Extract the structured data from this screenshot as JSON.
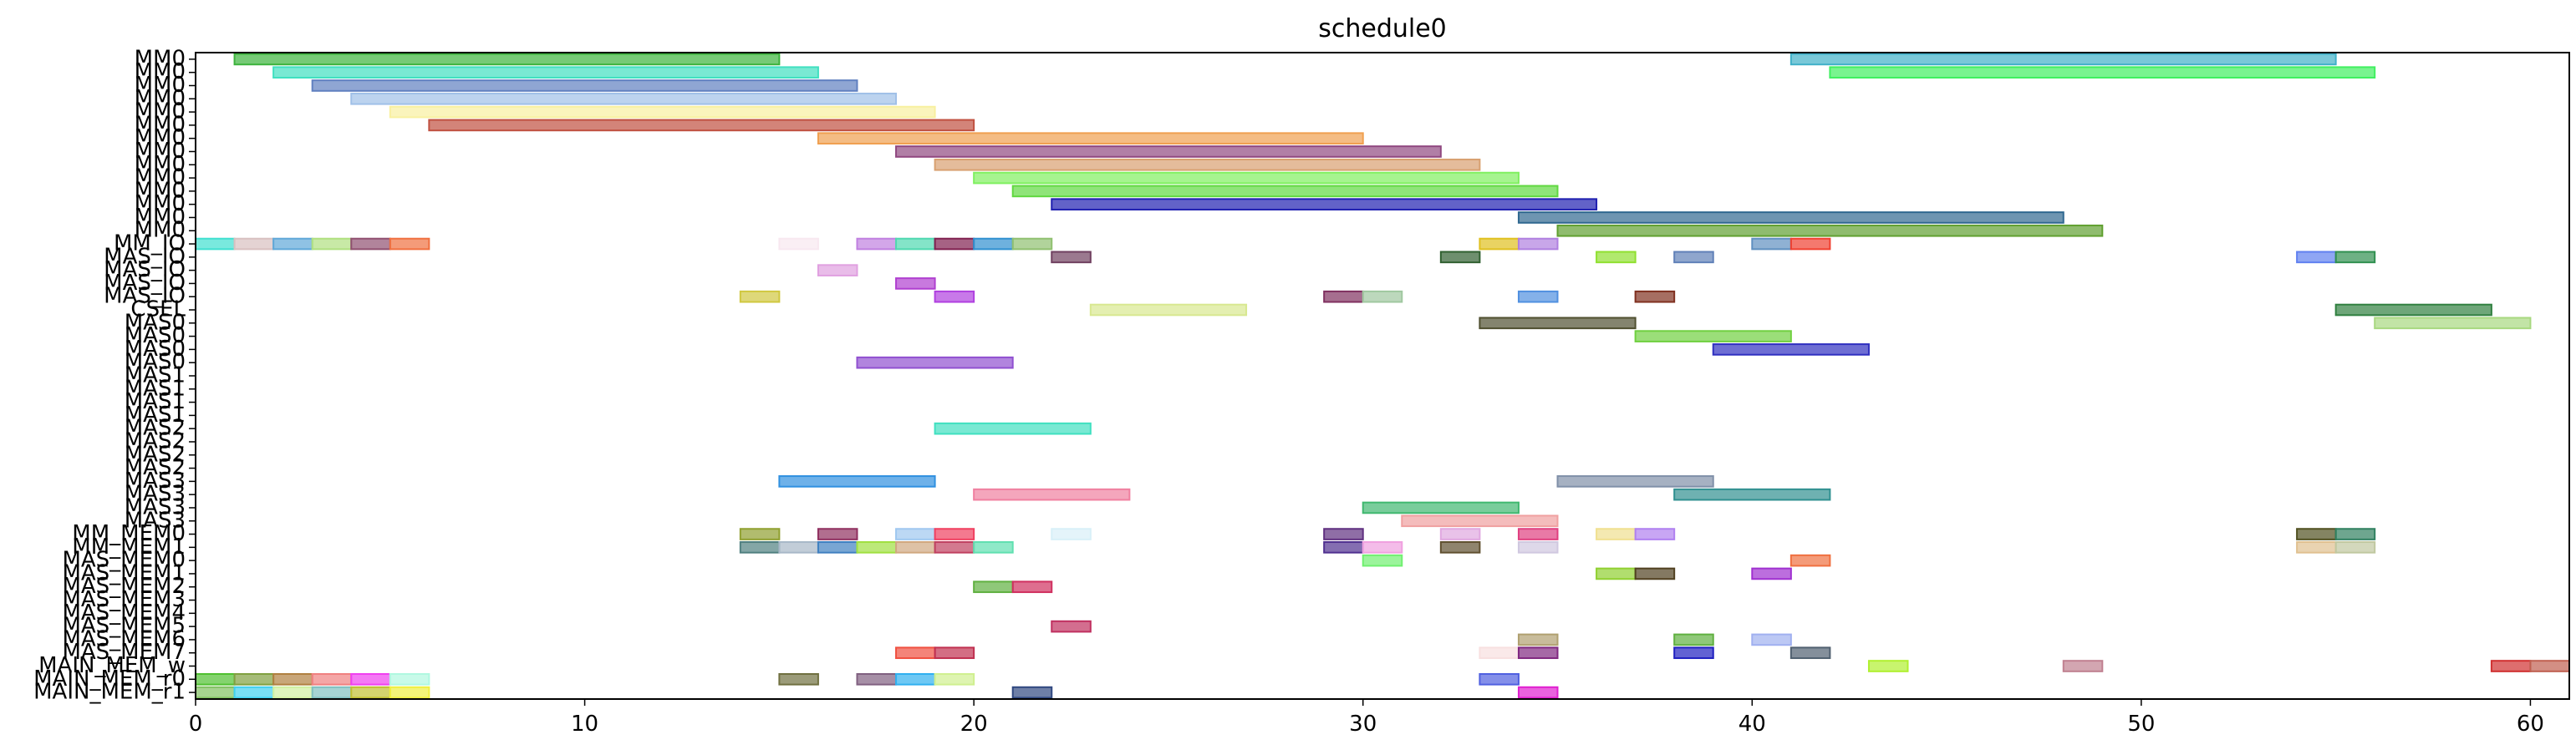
{
  "chart_data": {
    "type": "gantt",
    "title": "schedule0",
    "xlim": [
      0,
      61
    ],
    "x_ticks": [
      0,
      10,
      20,
      30,
      40,
      50,
      60
    ],
    "grid": false,
    "rows": [
      "MM0",
      "MM0",
      "MM0",
      "MM0",
      "MM0",
      "MM0",
      "MM0",
      "MM0",
      "MM0",
      "MM0",
      "MM0",
      "MM0",
      "MM0",
      "MM0",
      "MM_IO",
      "MAS_IO",
      "MAS_IO",
      "MAS_IO",
      "MAS_IO",
      "CSEL",
      "MAS0",
      "MAS0",
      "MAS0",
      "MAS0",
      "MAS1",
      "MAS1",
      "MAS1",
      "MAS1",
      "MAS2",
      "MAS2",
      "MAS2",
      "MAS2",
      "MAS3",
      "MAS3",
      "MAS3",
      "MAS3",
      "MM_MEM0",
      "MM_MEM1",
      "MAS_MEM0",
      "MAS_MEM1",
      "MAS_MEM2",
      "MAS_MEM3",
      "MAS_MEM4",
      "MAS_MEM5",
      "MAS_MEM6",
      "MAS_MEM7",
      "MAIN_MEM_w",
      "MAIN_MEM_r0",
      "MAIN_MEM_r1"
    ],
    "tasks": [
      {
        "row": 0,
        "start": 1,
        "end": 15,
        "color": "#3cb33c"
      },
      {
        "row": 0,
        "start": 41,
        "end": 55,
        "color": "#40b0c8"
      },
      {
        "row": 1,
        "start": 2,
        "end": 16,
        "color": "#40e0c0"
      },
      {
        "row": 1,
        "start": 42,
        "end": 56,
        "color": "#40f060"
      },
      {
        "row": 2,
        "start": 3,
        "end": 17,
        "color": "#6080c0"
      },
      {
        "row": 3,
        "start": 4,
        "end": 18,
        "color": "#a0c0e8"
      },
      {
        "row": 4,
        "start": 5,
        "end": 19,
        "color": "#f8f0a0"
      },
      {
        "row": 5,
        "start": 6,
        "end": 20,
        "color": "#c05040"
      },
      {
        "row": 6,
        "start": 16,
        "end": 30,
        "color": "#f0a050"
      },
      {
        "row": 7,
        "start": 18,
        "end": 32,
        "color": "#904880"
      },
      {
        "row": 8,
        "start": 19,
        "end": 33,
        "color": "#d8a070"
      },
      {
        "row": 9,
        "start": 20,
        "end": 34,
        "color": "#80f060"
      },
      {
        "row": 10,
        "start": 21,
        "end": 35,
        "color": "#60d840"
      },
      {
        "row": 11,
        "start": 22,
        "end": 36,
        "color": "#2020b0"
      },
      {
        "row": 12,
        "start": 34,
        "end": 48,
        "color": "#306890"
      },
      {
        "row": 13,
        "start": 35,
        "end": 49,
        "color": "#60a030"
      },
      {
        "row": 14,
        "start": 0,
        "end": 1,
        "color": "#40e0d0"
      },
      {
        "row": 14,
        "start": 1,
        "end": 2,
        "color": "#d8c0c0"
      },
      {
        "row": 14,
        "start": 2,
        "end": 3,
        "color": "#60a8d8"
      },
      {
        "row": 14,
        "start": 3,
        "end": 4,
        "color": "#b0e080"
      },
      {
        "row": 14,
        "start": 4,
        "end": 5,
        "color": "#905070"
      },
      {
        "row": 14,
        "start": 5,
        "end": 6,
        "color": "#f07040"
      },
      {
        "row": 14,
        "start": 15,
        "end": 16,
        "color": "#f8e8f0"
      },
      {
        "row": 14,
        "start": 17,
        "end": 18,
        "color": "#c080e0"
      },
      {
        "row": 14,
        "start": 18,
        "end": 19,
        "color": "#50d8b0"
      },
      {
        "row": 14,
        "start": 19,
        "end": 20,
        "color": "#802050"
      },
      {
        "row": 14,
        "start": 20,
        "end": 21,
        "color": "#3090d0"
      },
      {
        "row": 14,
        "start": 21,
        "end": 22,
        "color": "#90c070"
      },
      {
        "row": 14,
        "start": 33,
        "end": 34,
        "color": "#e0c020"
      },
      {
        "row": 14,
        "start": 34,
        "end": 35,
        "color": "#b080e0"
      },
      {
        "row": 14,
        "start": 40,
        "end": 41,
        "color": "#6090c0"
      },
      {
        "row": 14,
        "start": 41,
        "end": 42,
        "color": "#f04030"
      },
      {
        "row": 15,
        "start": 22,
        "end": 23,
        "color": "#704060"
      },
      {
        "row": 15,
        "start": 32,
        "end": 33,
        "color": "#306030"
      },
      {
        "row": 15,
        "start": 36,
        "end": 37,
        "color": "#90e030"
      },
      {
        "row": 15,
        "start": 38,
        "end": 39,
        "color": "#6080b8"
      },
      {
        "row": 15,
        "start": 54,
        "end": 55,
        "color": "#6080f0"
      },
      {
        "row": 15,
        "start": 55,
        "end": 56,
        "color": "#309050"
      },
      {
        "row": 16,
        "start": 16,
        "end": 17,
        "color": "#e0a0e0"
      },
      {
        "row": 17,
        "start": 18,
        "end": 19,
        "color": "#b040d0"
      },
      {
        "row": 18,
        "start": 14,
        "end": 15,
        "color": "#d0c840"
      },
      {
        "row": 18,
        "start": 19,
        "end": 20,
        "color": "#b040e0"
      },
      {
        "row": 18,
        "start": 29,
        "end": 30,
        "color": "#803060"
      },
      {
        "row": 18,
        "start": 30,
        "end": 31,
        "color": "#a0c8a0"
      },
      {
        "row": 18,
        "start": 34,
        "end": 35,
        "color": "#5090e0"
      },
      {
        "row": 18,
        "start": 37,
        "end": 38,
        "color": "#803020"
      },
      {
        "row": 19,
        "start": 23,
        "end": 27,
        "color": "#d8e890"
      },
      {
        "row": 19,
        "start": 55,
        "end": 59,
        "color": "#308040"
      },
      {
        "row": 20,
        "start": 56,
        "end": 60,
        "color": "#a8d880"
      },
      {
        "row": 20,
        "start": 33,
        "end": 37,
        "color": "#505030"
      },
      {
        "row": 21,
        "start": 37,
        "end": 41,
        "color": "#70d040"
      },
      {
        "row": 22,
        "start": 39,
        "end": 43,
        "color": "#3030c0"
      },
      {
        "row": 23,
        "start": 17,
        "end": 21,
        "color": "#9050d0"
      },
      {
        "row": 28,
        "start": 19,
        "end": 23,
        "color": "#40e0c0"
      },
      {
        "row": 32,
        "start": 15,
        "end": 19,
        "color": "#3090e0"
      },
      {
        "row": 32,
        "start": 35,
        "end": 39,
        "color": "#8090a8"
      },
      {
        "row": 33,
        "start": 20,
        "end": 24,
        "color": "#f080a0"
      },
      {
        "row": 33,
        "start": 38,
        "end": 42,
        "color": "#309090"
      },
      {
        "row": 34,
        "start": 30,
        "end": 34,
        "color": "#40b870"
      },
      {
        "row": 35,
        "start": 31,
        "end": 35,
        "color": "#f0a0a0"
      },
      {
        "row": 36,
        "start": 14,
        "end": 15,
        "color": "#90a030"
      },
      {
        "row": 36,
        "start": 16,
        "end": 17,
        "color": "#903060"
      },
      {
        "row": 36,
        "start": 18,
        "end": 19,
        "color": "#a0c8f0"
      },
      {
        "row": 36,
        "start": 19,
        "end": 20,
        "color": "#f04060"
      },
      {
        "row": 36,
        "start": 22,
        "end": 23,
        "color": "#d8f0f8"
      },
      {
        "row": 36,
        "start": 29,
        "end": 30,
        "color": "#603080"
      },
      {
        "row": 36,
        "start": 32,
        "end": 33,
        "color": "#e0a8e0"
      },
      {
        "row": 36,
        "start": 34,
        "end": 35,
        "color": "#e04080"
      },
      {
        "row": 36,
        "start": 36,
        "end": 37,
        "color": "#f0e090"
      },
      {
        "row": 36,
        "start": 37,
        "end": 38,
        "color": "#b080f0"
      },
      {
        "row": 36,
        "start": 54,
        "end": 55,
        "color": "#505020"
      },
      {
        "row": 36,
        "start": 55,
        "end": 56,
        "color": "#308060"
      },
      {
        "row": 37,
        "start": 14,
        "end": 15,
        "color": "#508080"
      },
      {
        "row": 37,
        "start": 15,
        "end": 16,
        "color": "#a8b8c8"
      },
      {
        "row": 37,
        "start": 16,
        "end": 17,
        "color": "#4080c0"
      },
      {
        "row": 37,
        "start": 17,
        "end": 18,
        "color": "#a0e040"
      },
      {
        "row": 37,
        "start": 18,
        "end": 19,
        "color": "#d0a880"
      },
      {
        "row": 37,
        "start": 19,
        "end": 20,
        "color": "#c04060"
      },
      {
        "row": 37,
        "start": 20,
        "end": 21,
        "color": "#60e0b0"
      },
      {
        "row": 37,
        "start": 29,
        "end": 30,
        "color": "#503090"
      },
      {
        "row": 37,
        "start": 30,
        "end": 31,
        "color": "#f0a0e0"
      },
      {
        "row": 37,
        "start": 32,
        "end": 33,
        "color": "#605030"
      },
      {
        "row": 37,
        "start": 34,
        "end": 35,
        "color": "#d0c8e0"
      },
      {
        "row": 37,
        "start": 54,
        "end": 55,
        "color": "#e0c090"
      },
      {
        "row": 37,
        "start": 55,
        "end": 56,
        "color": "#c0c8a0"
      },
      {
        "row": 38,
        "start": 30,
        "end": 31,
        "color": "#70f070"
      },
      {
        "row": 38,
        "start": 41,
        "end": 42,
        "color": "#f07040"
      },
      {
        "row": 39,
        "start": 36,
        "end": 37,
        "color": "#90d030"
      },
      {
        "row": 39,
        "start": 37,
        "end": 38,
        "color": "#504020"
      },
      {
        "row": 39,
        "start": 40,
        "end": 41,
        "color": "#a030d0"
      },
      {
        "row": 40,
        "start": 20,
        "end": 21,
        "color": "#60b040"
      },
      {
        "row": 40,
        "start": 21,
        "end": 22,
        "color": "#d03060"
      },
      {
        "row": 43,
        "start": 22,
        "end": 23,
        "color": "#c03060"
      },
      {
        "row": 44,
        "start": 34,
        "end": 35,
        "color": "#b0a070"
      },
      {
        "row": 44,
        "start": 38,
        "end": 39,
        "color": "#60b040"
      },
      {
        "row": 44,
        "start": 40,
        "end": 41,
        "color": "#a0b0f0"
      },
      {
        "row": 45,
        "start": 18,
        "end": 19,
        "color": "#f05040"
      },
      {
        "row": 45,
        "start": 19,
        "end": 20,
        "color": "#c03050"
      },
      {
        "row": 45,
        "start": 33,
        "end": 34,
        "color": "#f8e0e0"
      },
      {
        "row": 45,
        "start": 34,
        "end": 35,
        "color": "#802880"
      },
      {
        "row": 45,
        "start": 38,
        "end": 39,
        "color": "#2020c0"
      },
      {
        "row": 45,
        "start": 41,
        "end": 42,
        "color": "#506070"
      },
      {
        "row": 46,
        "start": 43,
        "end": 44,
        "color": "#b0f030"
      },
      {
        "row": 46,
        "start": 48,
        "end": 49,
        "color": "#c08090"
      },
      {
        "row": 46,
        "start": 59,
        "end": 60,
        "color": "#d03030"
      },
      {
        "row": 46,
        "start": 60,
        "end": 61,
        "color": "#c06050"
      },
      {
        "row": 47,
        "start": 0,
        "end": 1,
        "color": "#50c030"
      },
      {
        "row": 47,
        "start": 1,
        "end": 2,
        "color": "#80a040"
      },
      {
        "row": 47,
        "start": 2,
        "end": 3,
        "color": "#b08040"
      },
      {
        "row": 47,
        "start": 3,
        "end": 4,
        "color": "#f08080"
      },
      {
        "row": 47,
        "start": 4,
        "end": 5,
        "color": "#f040f0"
      },
      {
        "row": 47,
        "start": 5,
        "end": 6,
        "color": "#b0f8e0"
      },
      {
        "row": 47,
        "start": 15,
        "end": 16,
        "color": "#707040"
      },
      {
        "row": 47,
        "start": 17,
        "end": 18,
        "color": "#806080"
      },
      {
        "row": 47,
        "start": 18,
        "end": 19,
        "color": "#30b0f0"
      },
      {
        "row": 47,
        "start": 19,
        "end": 20,
        "color": "#d0f090"
      },
      {
        "row": 47,
        "start": 33,
        "end": 34,
        "color": "#5060e0"
      },
      {
        "row": 48,
        "start": 0,
        "end": 1,
        "color": "#80c060"
      },
      {
        "row": 48,
        "start": 1,
        "end": 2,
        "color": "#40d0f0"
      },
      {
        "row": 48,
        "start": 2,
        "end": 3,
        "color": "#d0f0a0"
      },
      {
        "row": 48,
        "start": 3,
        "end": 4,
        "color": "#80c0c0"
      },
      {
        "row": 48,
        "start": 4,
        "end": 5,
        "color": "#c0c030"
      },
      {
        "row": 48,
        "start": 5,
        "end": 6,
        "color": "#f0f040"
      },
      {
        "row": 48,
        "start": 21,
        "end": 22,
        "color": "#304880"
      },
      {
        "row": 48,
        "start": 34,
        "end": 35,
        "color": "#e020d0"
      }
    ]
  }
}
